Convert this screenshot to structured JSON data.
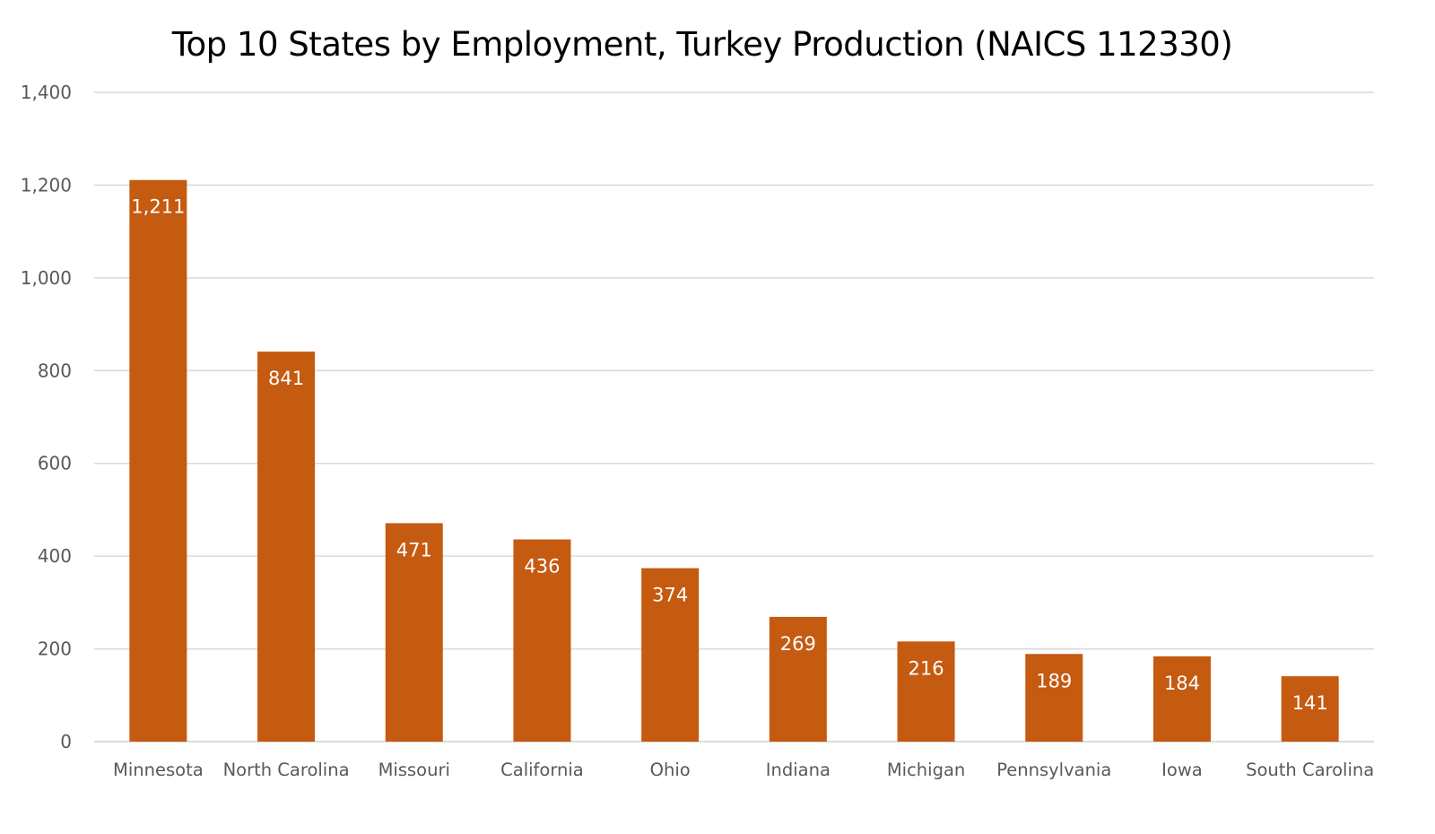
{
  "chart_data": {
    "type": "bar",
    "title": "Top 10 States by Employment, Turkey Production (NAICS 112330)",
    "xlabel": "",
    "ylabel": "",
    "categories": [
      "Minnesota",
      "North Carolina",
      "Missouri",
      "California",
      "Ohio",
      "Indiana",
      "Michigan",
      "Pennsylvania",
      "Iowa",
      "South Carolina"
    ],
    "values": [
      1211,
      841,
      471,
      436,
      374,
      269,
      216,
      189,
      184,
      141
    ],
    "data_labels": [
      "1,211",
      "841",
      "471",
      "436",
      "374",
      "269",
      "216",
      "189",
      "184",
      "141"
    ],
    "ylim": [
      0,
      1400
    ],
    "yticks": [
      0,
      200,
      400,
      600,
      800,
      1000,
      1200,
      1400
    ],
    "ytick_labels": [
      "0",
      "200",
      "400",
      "600",
      "800",
      "1,000",
      "1,200",
      "1,400"
    ],
    "grid": true,
    "legend": "none",
    "bar_color": "#C55A11"
  }
}
